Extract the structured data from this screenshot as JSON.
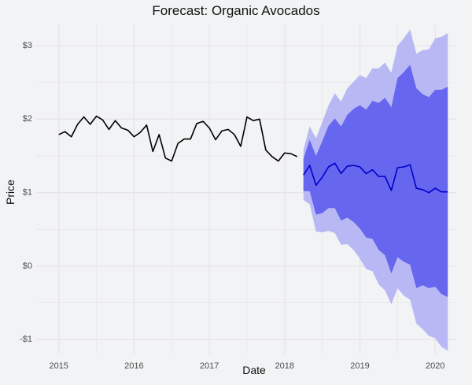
{
  "chart_data": {
    "type": "line",
    "title": "Forecast: Organic Avocados",
    "xlabel": "Date",
    "ylabel": "Price",
    "x_ticks": [
      2015,
      2016,
      2017,
      2018,
      2019,
      2020
    ],
    "y_ticks": [
      -1,
      0,
      1,
      2,
      3
    ],
    "y_tick_labels": [
      "-$1",
      "$0",
      "$1",
      "$2",
      "$3"
    ],
    "xlim": [
      2014.7,
      2020.28
    ],
    "ylim": [
      -1.2,
      3.3
    ],
    "grid": true,
    "legend": "none",
    "colors": {
      "background": "#f1f3f4",
      "grid": "#e6e1e6",
      "history_line": "#000000",
      "forecast_line": "#0000cc",
      "band_80": "#6666ee",
      "band_95": "#b8b8f5"
    },
    "series": [
      {
        "role": "history",
        "x": [
          2015.0,
          2015.083,
          2015.167,
          2015.25,
          2015.333,
          2015.417,
          2015.5,
          2015.583,
          2015.667,
          2015.75,
          2015.833,
          2015.917,
          2016.0,
          2016.083,
          2016.167,
          2016.25,
          2016.333,
          2016.417,
          2016.5,
          2016.583,
          2016.667,
          2016.75,
          2016.833,
          2016.917,
          2017.0,
          2017.083,
          2017.167,
          2017.25,
          2017.333,
          2017.417,
          2017.5,
          2017.583,
          2017.667,
          2017.75,
          2017.833,
          2017.917,
          2018.0,
          2018.083,
          2018.167
        ],
        "values": [
          1.79,
          1.83,
          1.76,
          1.93,
          2.03,
          1.93,
          2.04,
          1.99,
          1.86,
          1.98,
          1.88,
          1.85,
          1.76,
          1.82,
          1.92,
          1.56,
          1.79,
          1.47,
          1.43,
          1.67,
          1.73,
          1.73,
          1.94,
          1.97,
          1.88,
          1.72,
          1.84,
          1.86,
          1.79,
          1.63,
          2.03,
          1.98,
          2.0,
          1.58,
          1.49,
          1.43,
          1.54,
          1.53,
          1.49
        ]
      },
      {
        "role": "forecast",
        "x": [
          2018.25,
          2018.333,
          2018.417,
          2018.5,
          2018.583,
          2018.667,
          2018.75,
          2018.833,
          2018.917,
          2019.0,
          2019.083,
          2019.167,
          2019.25,
          2019.333,
          2019.417,
          2019.5,
          2019.583,
          2019.667,
          2019.75,
          2019.833,
          2019.917,
          2020.0,
          2020.083,
          2020.167
        ],
        "values": [
          1.24,
          1.37,
          1.1,
          1.21,
          1.35,
          1.4,
          1.26,
          1.36,
          1.37,
          1.35,
          1.26,
          1.31,
          1.22,
          1.22,
          1.03,
          1.34,
          1.35,
          1.38,
          1.06,
          1.04,
          1.0,
          1.06,
          1.01,
          1.01
        ],
        "lo80": [
          1.02,
          1.02,
          0.7,
          0.72,
          0.79,
          0.79,
          0.62,
          0.66,
          0.6,
          0.51,
          0.39,
          0.37,
          0.22,
          0.15,
          -0.1,
          0.12,
          0.06,
          0.02,
          -0.3,
          -0.26,
          -0.3,
          -0.28,
          -0.38,
          -0.42
        ],
        "hi80": [
          1.46,
          1.72,
          1.5,
          1.7,
          1.91,
          2.01,
          1.9,
          2.06,
          2.14,
          2.19,
          2.13,
          2.25,
          2.22,
          2.29,
          2.16,
          2.56,
          2.64,
          2.74,
          2.42,
          2.34,
          2.3,
          2.4,
          2.4,
          2.44
        ]
      }
    ],
    "band_95": {
      "x": [
        2018.25,
        2018.333,
        2018.417,
        2018.5,
        2018.583,
        2018.667,
        2018.75,
        2018.833,
        2018.917,
        2019.0,
        2019.083,
        2019.167,
        2019.25,
        2019.333,
        2019.417,
        2019.5,
        2019.583,
        2019.667,
        2019.75,
        2019.833,
        2019.917,
        2020.0,
        2020.083,
        2020.167
      ],
      "lo": [
        0.9,
        0.84,
        0.47,
        0.46,
        0.48,
        0.45,
        0.29,
        0.3,
        0.22,
        0.1,
        -0.04,
        -0.07,
        -0.25,
        -0.33,
        -0.52,
        -0.3,
        -0.4,
        -0.46,
        -0.78,
        -0.86,
        -0.95,
        -0.98,
        -1.1,
        -1.15
      ],
      "hi": [
        1.58,
        1.9,
        1.74,
        1.96,
        2.19,
        2.35,
        2.24,
        2.42,
        2.51,
        2.6,
        2.56,
        2.69,
        2.69,
        2.77,
        2.63,
        3.0,
        3.1,
        3.22,
        2.89,
        2.94,
        2.95,
        3.1,
        3.12,
        3.17
      ]
    }
  }
}
